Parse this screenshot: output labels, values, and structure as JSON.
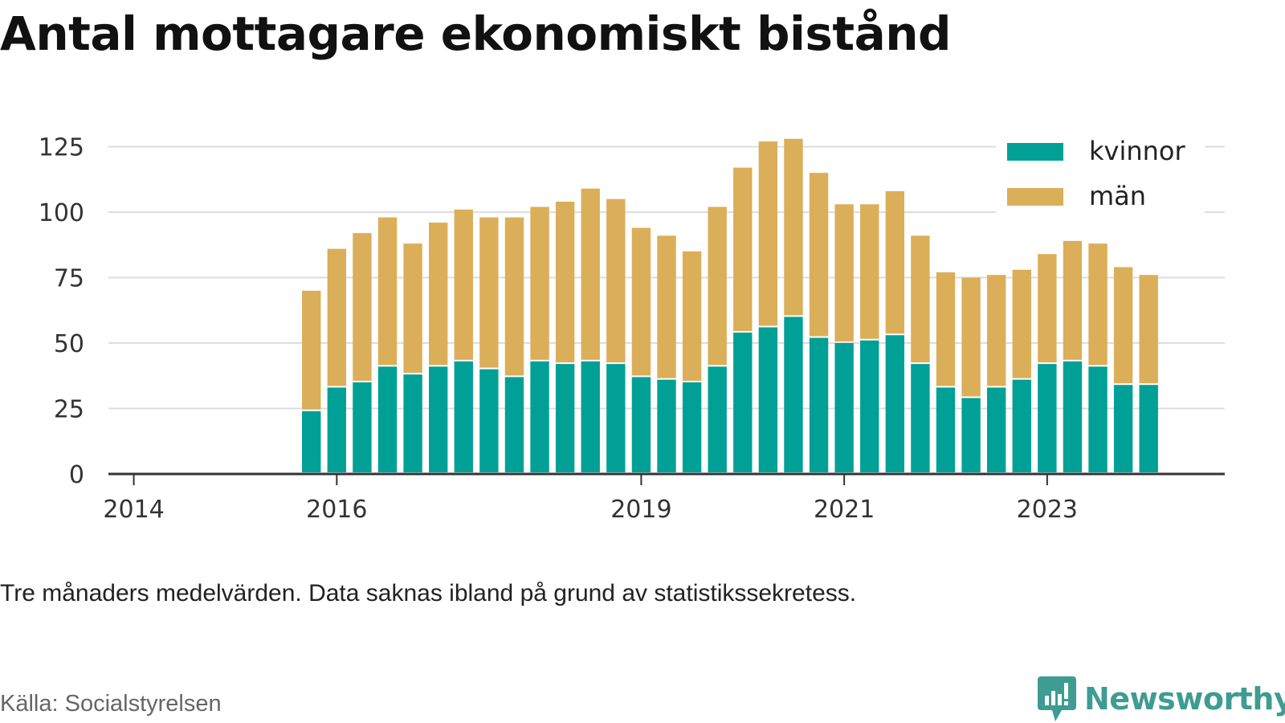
{
  "title": "Antal mottagare ekonomiskt bistånd",
  "note": "Tre månaders medelvärden. Data saknas ibland på grund av statistikssekretess.",
  "source": "Källa: Socialstyrelsen",
  "brand": {
    "name": "Newsworthy",
    "icon": "newsworthy-logo-icon",
    "color": "#3e9c92"
  },
  "chart_data": {
    "type": "bar",
    "stacked": true,
    "title": "Antal mottagare ekonomiskt bistånd",
    "xlabel": "",
    "ylabel": "",
    "ylim": [
      0,
      135
    ],
    "yticks": [
      0,
      25,
      50,
      75,
      100,
      125
    ],
    "xlim": [
      2013.75,
      2024.75
    ],
    "xticks": [
      2014,
      2016,
      2019,
      2021,
      2023
    ],
    "xtick_labels": [
      "2014",
      "2016",
      "2019",
      "2021",
      "2023"
    ],
    "grid": true,
    "legend_position": "top-right",
    "x": [
      2015.75,
      2016.0,
      2016.25,
      2016.5,
      2016.75,
      2017.0,
      2017.25,
      2017.5,
      2017.75,
      2018.0,
      2018.25,
      2018.5,
      2018.75,
      2019.0,
      2019.25,
      2019.5,
      2019.75,
      2020.0,
      2020.25,
      2020.5,
      2020.75,
      2021.0,
      2021.25,
      2021.5,
      2021.75,
      2022.0,
      2022.25,
      2022.5,
      2022.75,
      2023.0,
      2023.25,
      2023.5,
      2023.75,
      2024.0,
      2024.25
    ],
    "series": [
      {
        "name": "kvinnor",
        "color": "#00a096",
        "values": [
          24,
          33,
          35,
          41,
          38,
          41,
          43,
          40,
          37,
          43,
          42,
          43,
          42,
          37,
          36,
          35,
          41,
          54,
          56,
          60,
          52,
          50,
          51,
          53,
          42,
          33,
          29,
          33,
          36,
          42,
          43,
          41,
          34,
          34,
          0
        ]
      },
      {
        "name": "män",
        "color": "#dbae59",
        "values": [
          46,
          53,
          57,
          57,
          50,
          55,
          58,
          58,
          61,
          59,
          62,
          66,
          63,
          57,
          55,
          50,
          61,
          63,
          71,
          68,
          63,
          53,
          52,
          55,
          49,
          44,
          46,
          43,
          42,
          42,
          46,
          47,
          45,
          42,
          0
        ]
      }
    ]
  }
}
